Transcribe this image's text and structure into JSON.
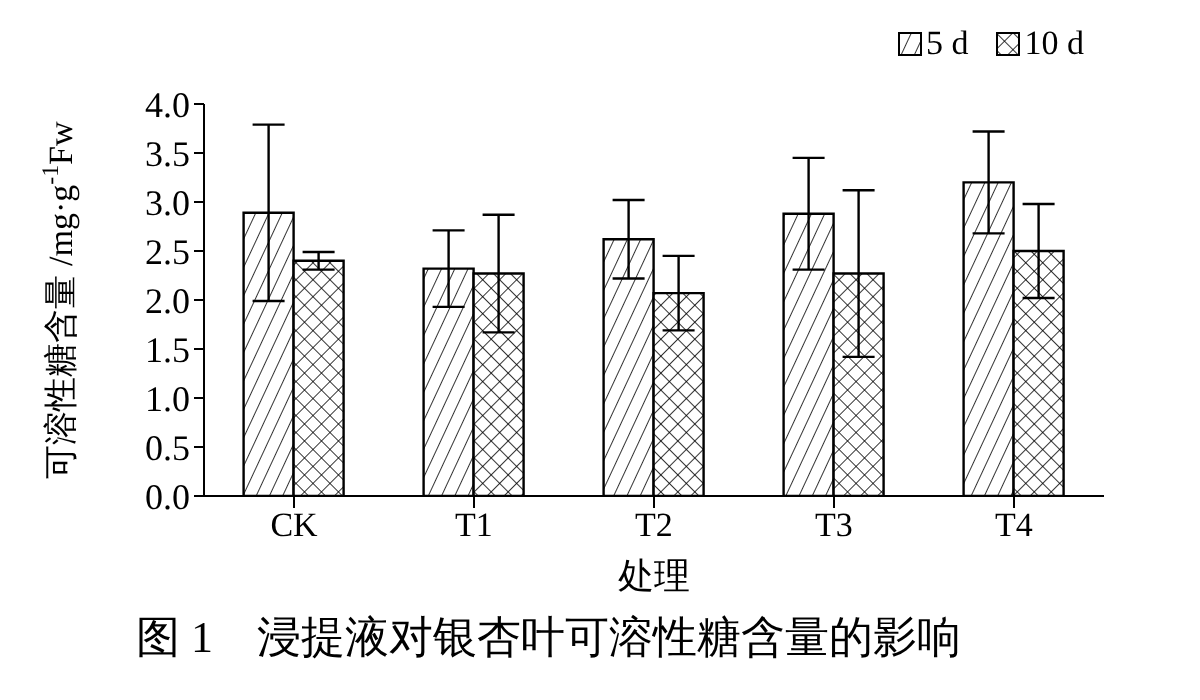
{
  "chart_data": {
    "type": "bar",
    "title": "图 1　浸提液对银杏叶可溶性糖含量的影响",
    "xlabel": "处理",
    "ylabel": "可溶性糖含量 /mg·g$^{-1}$Fw",
    "categories": [
      "CK",
      "T1",
      "T2",
      "T3",
      "T4"
    ],
    "series": [
      {
        "name": "5 d",
        "color": "#000000",
        "values": [
          2.89,
          2.32,
          2.62,
          2.88,
          3.2
        ],
        "errors": [
          0.9,
          0.39,
          0.4,
          0.57,
          0.52
        ]
      },
      {
        "name": "10 d",
        "color": "#000000",
        "values": [
          2.4,
          2.27,
          2.07,
          2.27,
          2.5
        ],
        "errors": [
          0.09,
          0.6,
          0.38,
          0.85,
          0.48
        ]
      }
    ],
    "ylim": [
      0,
      4
    ],
    "yticks": [
      {
        "value": 0,
        "label": "0.0"
      },
      {
        "value": 0.5,
        "label": "0.5"
      },
      {
        "value": 1,
        "label": "1.0"
      },
      {
        "value": 1.5,
        "label": "1.5"
      },
      {
        "value": 2,
        "label": "2.0"
      },
      {
        "value": 2.5,
        "label": "2.5"
      },
      {
        "value": 3,
        "label": "3.0"
      },
      {
        "value": 3.5,
        "label": "3.5"
      },
      {
        "value": 4,
        "label": "4.0"
      }
    ],
    "grid": false,
    "legend": "top right"
  }
}
